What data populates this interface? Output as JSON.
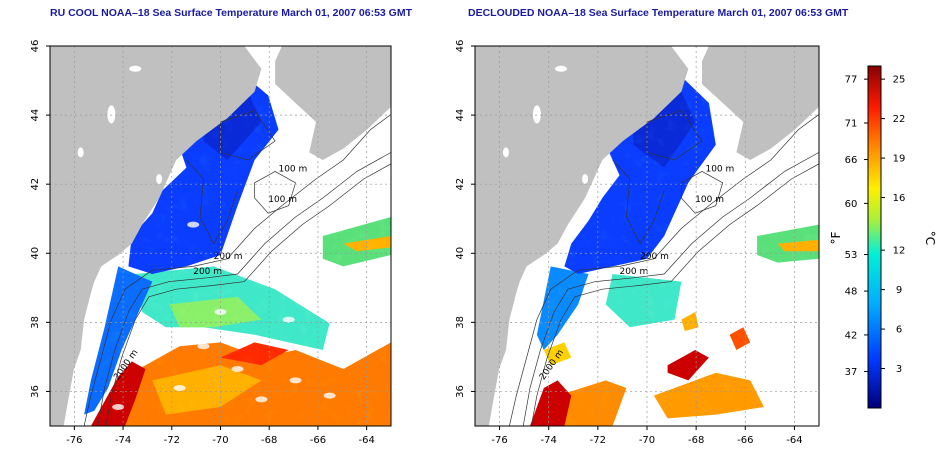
{
  "panels": [
    {
      "title": "RU COOL NOAA–18 Sea Surface Temperature March 01, 2007 06:53 GMT",
      "variant": "raw",
      "contour_labels": [
        "100 m",
        "100 m",
        "200 m",
        "200 m",
        "2000 m"
      ]
    },
    {
      "title": "DECLOUDED NOAA–18 Sea Surface Temperature March 01, 2007 06:53 GMT",
      "variant": "declouded",
      "contour_labels": [
        "100 m",
        "100 m",
        "200 m",
        "200 m",
        "2000 m"
      ]
    }
  ],
  "axes": {
    "x_ticks": [
      "-76",
      "-74",
      "-72",
      "-70",
      "-68",
      "-66",
      "-64"
    ],
    "y_ticks": [
      "36",
      "38",
      "40",
      "42",
      "44",
      "46"
    ],
    "x_range": [
      -77.0,
      -63.0
    ],
    "y_range": [
      35.0,
      46.0
    ],
    "grid": "dotted"
  },
  "colorbar": {
    "fahrenheit_ticks": [
      "77",
      "71",
      "66",
      "60",
      "53",
      "48",
      "42",
      "37"
    ],
    "celsius_ticks": [
      "25",
      "22",
      "19",
      "16",
      "12",
      "9",
      "6",
      "3"
    ],
    "label_f": "°F",
    "label_c": "°C",
    "range_c": [
      0,
      26
    ]
  },
  "colors": {
    "land": "#c0c0c0",
    "cloud": "#ffffff",
    "title": "#1a1aa0",
    "contour": "#333333"
  }
}
